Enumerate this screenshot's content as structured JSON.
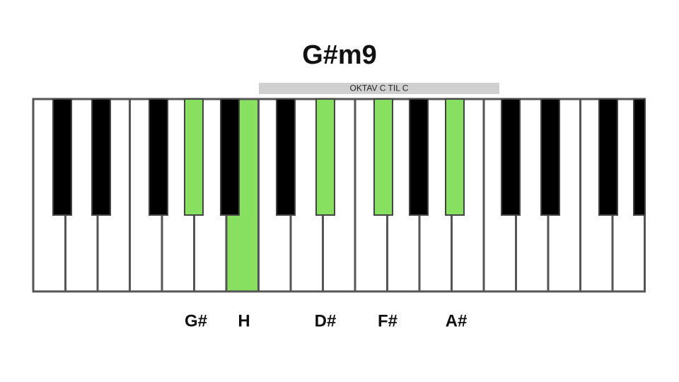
{
  "title": "G#m9",
  "octave_label": "OKTAV C TIL C",
  "note_labels": [
    "G#",
    "H",
    "D#",
    "F#",
    "A#"
  ]
}
